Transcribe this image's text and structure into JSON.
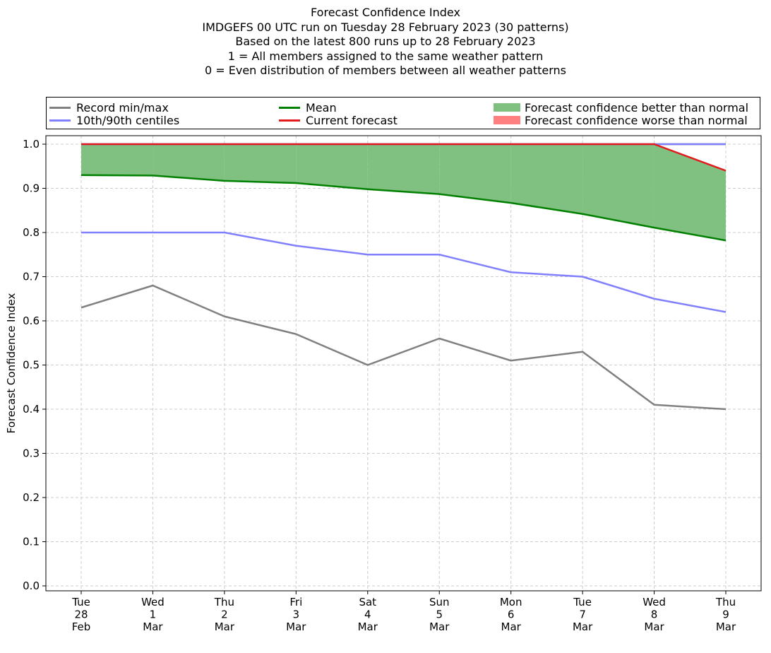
{
  "titles": {
    "line1": "Forecast Confidence Index",
    "line2": "IMDGEFS 00 UTC run on Tuesday 28 February 2023 (30 patterns)",
    "line3": "Based on the latest 800 runs up to 28 February 2023",
    "line4": "1 = All members assigned to the same weather pattern",
    "line5": "0 = Even distribution of members between all weather patterns"
  },
  "legend": {
    "record": "Record min/max",
    "centiles": "10th/90th centiles",
    "mean": "Mean",
    "current": "Current forecast",
    "better": "Forecast confidence better than normal",
    "worse": "Forecast confidence worse than normal"
  },
  "colors": {
    "record": "#808080",
    "centiles": "#8080ff",
    "mean": "#008000",
    "current": "#e31a1c",
    "better": "#80c080",
    "worse": "#ff8080"
  },
  "chart_data": {
    "type": "line",
    "ylabel": "Forecast Confidence Index",
    "ylim": [
      0,
      1
    ],
    "yticks": [
      "0.0",
      "0.1",
      "0.2",
      "0.3",
      "0.4",
      "0.5",
      "0.6",
      "0.7",
      "0.8",
      "0.9",
      "1.0"
    ],
    "grid": true,
    "legend_position": "top",
    "categories": [
      [
        "Tue",
        "28",
        "Feb"
      ],
      [
        "Wed",
        "1",
        "Mar"
      ],
      [
        "Thu",
        "2",
        "Mar"
      ],
      [
        "Fri",
        "3",
        "Mar"
      ],
      [
        "Sat",
        "4",
        "Mar"
      ],
      [
        "Sun",
        "5",
        "Mar"
      ],
      [
        "Mon",
        "6",
        "Mar"
      ],
      [
        "Tue",
        "7",
        "Mar"
      ],
      [
        "Wed",
        "8",
        "Mar"
      ],
      [
        "Thu",
        "9",
        "Mar"
      ]
    ],
    "series": [
      {
        "name": "Record min/max",
        "key": "record_min",
        "values": [
          0.63,
          0.68,
          0.61,
          0.57,
          0.5,
          0.56,
          0.51,
          0.53,
          0.41,
          0.4
        ]
      },
      {
        "name": "Record min/max",
        "key": "record_max",
        "values": [
          1.0,
          1.0,
          1.0,
          1.0,
          1.0,
          1.0,
          1.0,
          1.0,
          1.0,
          1.0
        ]
      },
      {
        "name": "10th/90th centiles",
        "key": "p10",
        "values": [
          0.8,
          0.8,
          0.8,
          0.77,
          0.75,
          0.75,
          0.71,
          0.7,
          0.65,
          0.62
        ]
      },
      {
        "name": "10th/90th centiles",
        "key": "p90",
        "values": [
          1.0,
          1.0,
          1.0,
          1.0,
          1.0,
          1.0,
          1.0,
          1.0,
          1.0,
          1.0
        ]
      },
      {
        "name": "Mean",
        "key": "mean",
        "values": [
          0.93,
          0.929,
          0.917,
          0.912,
          0.898,
          0.887,
          0.867,
          0.842,
          0.811,
          0.782
        ]
      },
      {
        "name": "Current forecast",
        "key": "current",
        "values": [
          1.0,
          1.0,
          1.0,
          1.0,
          1.0,
          1.0,
          1.0,
          1.0,
          1.0,
          0.94
        ]
      }
    ]
  }
}
